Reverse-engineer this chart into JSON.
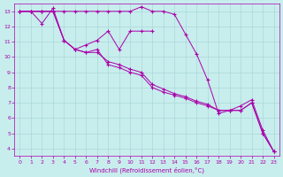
{
  "xlabel": "Windchill (Refroidissement éolien,°C)",
  "bg_color": "#c8eded",
  "grid_color": "#aad8d8",
  "line_color": "#aa00aa",
  "xlim": [
    -0.5,
    23.5
  ],
  "ylim": [
    3.5,
    13.5
  ],
  "yticks": [
    4,
    5,
    6,
    7,
    8,
    9,
    10,
    11,
    12,
    13
  ],
  "xticks": [
    0,
    1,
    2,
    3,
    4,
    5,
    6,
    7,
    8,
    9,
    10,
    11,
    12,
    13,
    14,
    15,
    16,
    17,
    18,
    19,
    20,
    21,
    22,
    23
  ],
  "lines": [
    {
      "x": [
        0,
        1,
        2,
        3,
        4,
        5,
        6,
        7,
        8,
        9,
        10,
        11,
        12,
        13,
        14,
        15,
        16,
        17,
        18,
        19,
        20,
        21,
        22,
        23
      ],
      "y": [
        13,
        13,
        13,
        13,
        13,
        13,
        13,
        13,
        13,
        13,
        13,
        13.3,
        13,
        13,
        12.8,
        11.5,
        10.2,
        8.5,
        6.3,
        6.5,
        6.8,
        7.2,
        5.2,
        3.8
      ]
    },
    {
      "x": [
        0,
        1,
        2,
        3,
        4,
        5,
        6,
        7,
        8,
        9,
        10,
        11,
        12
      ],
      "y": [
        13,
        13,
        12.2,
        13.2,
        11.1,
        10.5,
        10.8,
        11.1,
        11.7,
        10.5,
        11.7,
        11.7,
        11.7
      ]
    },
    {
      "x": [
        0,
        1,
        2,
        3,
        4,
        5,
        6,
        7,
        8,
        9,
        10,
        11,
        12,
        13,
        14,
        15,
        16,
        17,
        18,
        19,
        20,
        21,
        22,
        23
      ],
      "y": [
        13,
        13,
        13,
        13,
        11.1,
        10.5,
        10.3,
        10.5,
        9.5,
        9.3,
        9.0,
        8.8,
        8.0,
        7.7,
        7.5,
        7.3,
        7.0,
        6.8,
        6.5,
        6.5,
        6.5,
        7.0,
        5.0,
        3.8
      ]
    },
    {
      "x": [
        0,
        1,
        2,
        3,
        4,
        5,
        6,
        7,
        8,
        9,
        10,
        11,
        12,
        13,
        14,
        15,
        16,
        17,
        18,
        19,
        20,
        21,
        22,
        23
      ],
      "y": [
        13,
        13,
        13,
        13,
        11.1,
        10.5,
        10.3,
        10.3,
        9.7,
        9.5,
        9.2,
        9.0,
        8.2,
        7.9,
        7.6,
        7.4,
        7.1,
        6.9,
        6.5,
        6.5,
        6.5,
        7.0,
        5.0,
        3.8
      ]
    }
  ]
}
